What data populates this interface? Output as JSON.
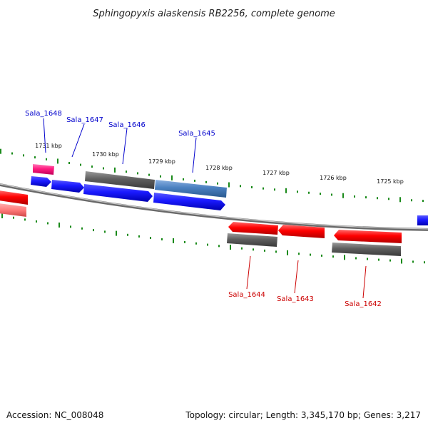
{
  "title": "Sphingopyxis alaskensis RB2256, complete genome",
  "footer": {
    "accession": "Accession: NC_008048",
    "summary": "Topology: circular; Length: 3,345,170 bp; Genes: 3,217"
  },
  "ticks": [
    "1731 kbp",
    "1730 kbp",
    "1729 kbp",
    "1728 kbp",
    "1727 kbp",
    "1726 kbp",
    "1725 kbp"
  ],
  "labels": {
    "top": [
      "Sala_1648",
      "Sala_1647",
      "Sala_1646",
      "Sala_1645"
    ],
    "bottom": [
      "Sala_1644",
      "Sala_1643",
      "Sala_1642"
    ]
  },
  "colors": {
    "forward_strand": "#1a1aff",
    "reverse_strand": "#ff0000",
    "forward_label": "#0000cc",
    "reverse_label": "#cc0000",
    "highlight_gene": "#4a86c8",
    "pink_gene": "#ff2a8a",
    "gray_feature": "#666666",
    "tick": "#1a8a1a",
    "backbone": "#8a8a8a"
  }
}
